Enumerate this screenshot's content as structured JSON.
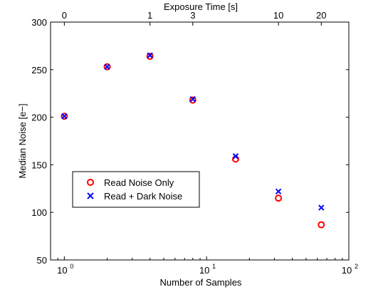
{
  "chart_data": {
    "type": "scatter",
    "title": "",
    "xlabel": "Number of Samples",
    "ylabel": "Median Noise [e−]",
    "top_xlabel": "Exposure Time [s]",
    "x_scale": "log",
    "xlim": [
      0.8,
      100
    ],
    "ylim": [
      50,
      300
    ],
    "grid": false,
    "legend_position": "lower-left",
    "y_ticks": [
      50,
      100,
      150,
      200,
      250,
      300
    ],
    "y_tick_labels": [
      "50",
      "100",
      "150",
      "200",
      "250",
      "300"
    ],
    "x_ticks": [
      1,
      10,
      100
    ],
    "x_tick_labels": [
      {
        "base": "10",
        "exp": "0"
      },
      {
        "base": "10",
        "exp": "1"
      },
      {
        "base": "10",
        "exp": "2"
      }
    ],
    "top_ticks": [
      {
        "x": 1,
        "label": "0"
      },
      {
        "x": 4,
        "label": "1"
      },
      {
        "x": 8,
        "label": "3"
      },
      {
        "x": 32,
        "label": "10"
      },
      {
        "x": 64,
        "label": "20"
      }
    ],
    "series": [
      {
        "name": "Read Noise Only",
        "marker": "circle",
        "color": "#ff0000",
        "x": [
          1,
          2,
          4,
          8,
          16,
          32,
          64
        ],
        "y": [
          201,
          253,
          264,
          218,
          156,
          115,
          87
        ]
      },
      {
        "name": "Read + Dark Noise",
        "marker": "x",
        "color": "#0000ff",
        "x": [
          1,
          2,
          4,
          8,
          16,
          32,
          64
        ],
        "y": [
          201,
          253,
          265,
          219,
          159,
          122,
          105
        ]
      }
    ]
  }
}
